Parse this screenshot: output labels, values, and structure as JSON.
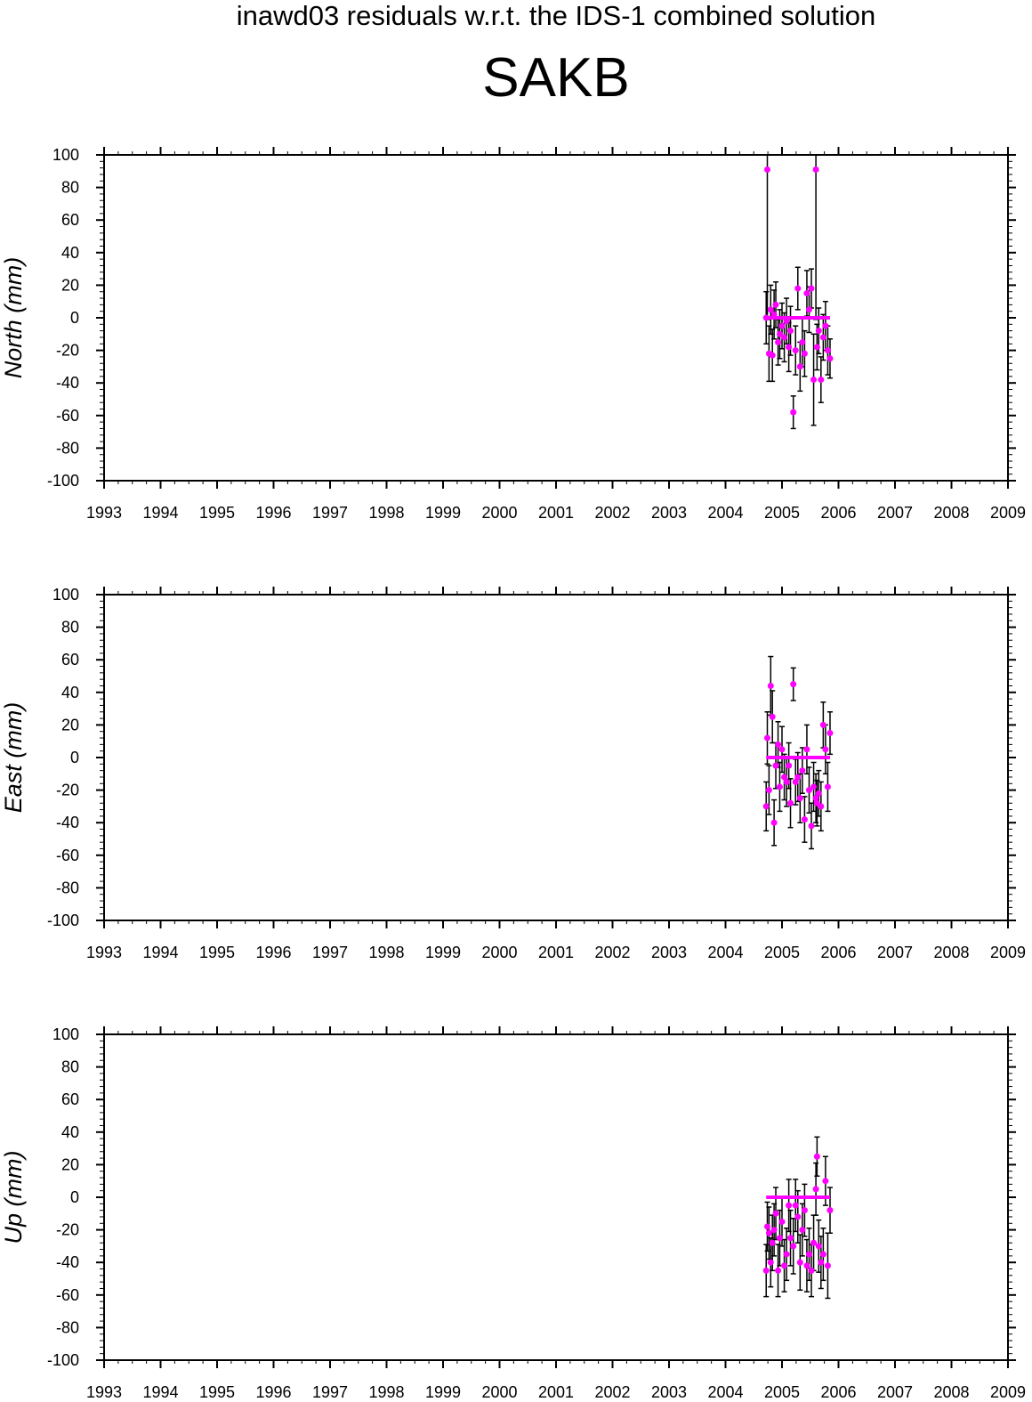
{
  "title": "inawd03 residuals w.r.t. the IDS-1 combined solution",
  "station": "SAKB",
  "colors": {
    "points": "#ff00ff",
    "errorbars": "#000000",
    "mean_line": "#ff00ff"
  },
  "chart_data": [
    {
      "type": "scatter",
      "ylabel": "North (mm)",
      "xlim": [
        1993,
        2009
      ],
      "ylim": [
        -100,
        100
      ],
      "xticks": [
        "1993",
        "1994",
        "1995",
        "1996",
        "1997",
        "1998",
        "1999",
        "2000",
        "2001",
        "2002",
        "2003",
        "2004",
        "2005",
        "2006",
        "2007",
        "2008",
        "2009"
      ],
      "yticks": [
        "100",
        "80",
        "60",
        "40",
        "20",
        "0",
        "-20",
        "-40",
        "-60",
        "-80",
        "-100"
      ],
      "mean": 0,
      "x": [
        2004.72,
        2004.74,
        2004.77,
        2004.8,
        2004.83,
        2004.86,
        2004.89,
        2004.93,
        2004.96,
        2005.0,
        2005.04,
        2005.08,
        2005.12,
        2005.15,
        2005.2,
        2005.24,
        2005.28,
        2005.32,
        2005.36,
        2005.4,
        2005.44,
        2005.48,
        2005.52,
        2005.56,
        2005.6,
        2005.62,
        2005.65,
        2005.69,
        2005.73,
        2005.77,
        2005.81,
        2005.85
      ],
      "y": [
        0,
        91,
        -22,
        5,
        -23,
        2,
        8,
        -15,
        -10,
        -5,
        -12,
        -2,
        -18,
        -8,
        -58,
        -20,
        18,
        -30,
        -15,
        -22,
        15,
        5,
        18,
        -38,
        91,
        -18,
        -8,
        -38,
        -12,
        -5,
        -20,
        -25
      ],
      "err": [
        16,
        92,
        17,
        15,
        16,
        15,
        14,
        14,
        15,
        14,
        15,
        14,
        15,
        15,
        10,
        15,
        13,
        15,
        15,
        14,
        14,
        14,
        12,
        28,
        92,
        14,
        14,
        14,
        14,
        15,
        15,
        12
      ]
    },
    {
      "type": "scatter",
      "ylabel": "East (mm)",
      "xlim": [
        1993,
        2009
      ],
      "ylim": [
        -100,
        100
      ],
      "xticks": [
        "1993",
        "1994",
        "1995",
        "1996",
        "1997",
        "1998",
        "1999",
        "2000",
        "2001",
        "2002",
        "2003",
        "2004",
        "2005",
        "2006",
        "2007",
        "2008",
        "2009"
      ],
      "yticks": [
        "100",
        "80",
        "60",
        "40",
        "20",
        "0",
        "-20",
        "-40",
        "-60",
        "-80",
        "-100"
      ],
      "mean": 0,
      "x": [
        2004.72,
        2004.74,
        2004.77,
        2004.8,
        2004.83,
        2004.86,
        2004.89,
        2004.93,
        2004.96,
        2005.0,
        2005.04,
        2005.08,
        2005.12,
        2005.15,
        2005.2,
        2005.24,
        2005.28,
        2005.32,
        2005.36,
        2005.4,
        2005.44,
        2005.48,
        2005.52,
        2005.56,
        2005.6,
        2005.62,
        2005.65,
        2005.69,
        2005.73,
        2005.77,
        2005.81,
        2005.85
      ],
      "y": [
        -30,
        12,
        -20,
        44,
        25,
        -40,
        -5,
        8,
        -18,
        5,
        -12,
        -15,
        -5,
        -28,
        45,
        -15,
        -12,
        -25,
        -8,
        -38,
        5,
        -20,
        -42,
        -18,
        -25,
        -28,
        -22,
        -30,
        20,
        5,
        -18,
        15
      ],
      "err": [
        15,
        16,
        15,
        18,
        16,
        14,
        14,
        14,
        15,
        14,
        14,
        15,
        14,
        15,
        10,
        14,
        15,
        15,
        14,
        14,
        15,
        14,
        14,
        15,
        15,
        14,
        14,
        15,
        14,
        15,
        15,
        13
      ]
    },
    {
      "type": "scatter",
      "ylabel": "Up (mm)",
      "xlim": [
        1993,
        2009
      ],
      "ylim": [
        -100,
        100
      ],
      "xticks": [
        "1993",
        "1994",
        "1995",
        "1996",
        "1997",
        "1998",
        "1999",
        "2000",
        "2001",
        "2002",
        "2003",
        "2004",
        "2005",
        "2006",
        "2007",
        "2008",
        "2009"
      ],
      "yticks": [
        "100",
        "80",
        "60",
        "40",
        "20",
        "0",
        "-20",
        "-40",
        "-60",
        "-80",
        "-100"
      ],
      "mean": 0,
      "x": [
        2004.72,
        2004.74,
        2004.77,
        2004.8,
        2004.83,
        2004.86,
        2004.89,
        2004.93,
        2004.96,
        2005.0,
        2005.04,
        2005.08,
        2005.12,
        2005.15,
        2005.2,
        2005.24,
        2005.28,
        2005.32,
        2005.36,
        2005.4,
        2005.44,
        2005.48,
        2005.52,
        2005.56,
        2005.6,
        2005.62,
        2005.65,
        2005.69,
        2005.73,
        2005.77,
        2005.81,
        2005.85
      ],
      "y": [
        -45,
        -18,
        -22,
        -40,
        -28,
        -20,
        -10,
        -45,
        -25,
        -15,
        -42,
        -35,
        -5,
        -25,
        -30,
        -5,
        -12,
        -40,
        -20,
        -8,
        -42,
        -35,
        -45,
        -28,
        5,
        25,
        -30,
        -40,
        -35,
        10,
        -42,
        -8
      ],
      "err": [
        16,
        15,
        16,
        15,
        17,
        16,
        16,
        16,
        17,
        15,
        16,
        16,
        16,
        17,
        17,
        16,
        16,
        17,
        16,
        16,
        16,
        16,
        16,
        17,
        16,
        12,
        16,
        16,
        16,
        15,
        20,
        14
      ]
    }
  ]
}
